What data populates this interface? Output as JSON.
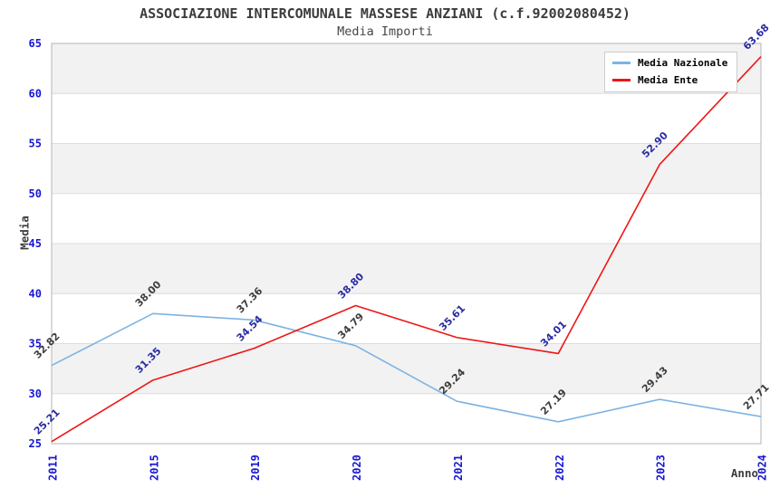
{
  "chart_data": {
    "type": "line",
    "title": "ASSOCIAZIONE INTERCOMUNALE MASSESE ANZIANI (c.f.92002080452)",
    "subtitle": "Media Importi",
    "xlabel": "Anno",
    "ylabel": "Media",
    "categories": [
      "2011",
      "2015",
      "2019",
      "2020",
      "2021",
      "2022",
      "2023",
      "2024"
    ],
    "series": [
      {
        "name": "Media Nazionale",
        "color": "#7db3e3",
        "label_color": "#3d3d3d",
        "values": [
          32.82,
          38.0,
          37.36,
          34.79,
          29.24,
          27.19,
          29.43,
          27.71
        ]
      },
      {
        "name": "Media Ente",
        "color": "#ef1515",
        "label_color": "#2b2ba3",
        "values": [
          25.21,
          31.35,
          34.54,
          38.8,
          35.61,
          34.01,
          52.9,
          63.68
        ]
      }
    ],
    "ylim": [
      25,
      65
    ],
    "ytick_step": 5,
    "grid": true,
    "legend_position": "top-right",
    "band_color": "#f2f2f2",
    "grid_color": "#dcdcdc",
    "plot_border_color": "#b6b6b6",
    "axis_tick_color": "#1717d1",
    "value_label_format": "0.00"
  }
}
